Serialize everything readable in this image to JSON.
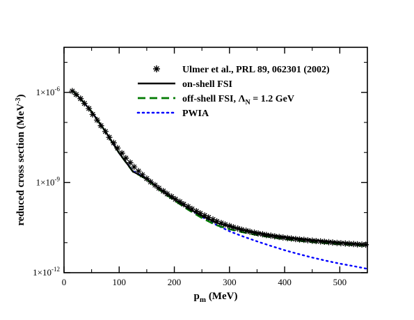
{
  "chart_data": {
    "type": "line",
    "xlabel": "p",
    "xlabel_sub": "m",
    "xlabel_unit": " (MeV)",
    "ylabel": "reduced cross section (MeV",
    "ylabel_sup": "-3",
    "ylabel_end": ")",
    "xlim": [
      0,
      550
    ],
    "ylim_log10": [
      -12,
      -4.5
    ],
    "yscale": "log",
    "grid": false,
    "legend_position": "top-right",
    "x_ticks": [
      {
        "value": 0,
        "label": "0"
      },
      {
        "value": 100,
        "label": "100"
      },
      {
        "value": 200,
        "label": "200"
      },
      {
        "value": 300,
        "label": "300"
      },
      {
        "value": 400,
        "label": "400"
      },
      {
        "value": 500,
        "label": "500"
      }
    ],
    "y_ticks": [
      {
        "exp": -6,
        "base": "1×10",
        "sup": "-6"
      },
      {
        "exp": -9,
        "base": "1×10",
        "sup": "-9"
      },
      {
        "exp": -12,
        "base": "1×10",
        "sup": "-12"
      }
    ],
    "series": [
      {
        "name": "Ulmer et al., PRL 89, 062301 (2002)",
        "kind": "points",
        "color": "#000000",
        "x": [
          15,
          22,
          30,
          37,
          45,
          52,
          60,
          67,
          75,
          82,
          90,
          97,
          105,
          112,
          120,
          127,
          135,
          142,
          150,
          157,
          165,
          172,
          180,
          187,
          195,
          202,
          210,
          217,
          225,
          232,
          240,
          247,
          255,
          262,
          270,
          277,
          285,
          292,
          300,
          307,
          315,
          322,
          330,
          337,
          345,
          352,
          360,
          367,
          375,
          382,
          390,
          397,
          405,
          412,
          420,
          427,
          435,
          442,
          450,
          457,
          465,
          472,
          480,
          487,
          495,
          502,
          510,
          517,
          525,
          532,
          540,
          547
        ],
        "y": [
          1.1e-06,
          8.5e-07,
          6.2e-07,
          4.3e-07,
          2.9e-07,
          1.85e-07,
          1.2e-07,
          7.8e-08,
          5e-08,
          3.2e-08,
          2.1e-08,
          1.4e-08,
          9.5e-09,
          6.5e-09,
          4.6e-09,
          3.3e-09,
          2.4e-09,
          1.8e-09,
          1.35e-09,
          1.05e-09,
          8.2e-10,
          6.5e-10,
          5.2e-10,
          4.2e-10,
          3.4e-10,
          2.8e-10,
          2.3e-10,
          1.9e-10,
          1.58e-10,
          1.32e-10,
          1.11e-10,
          9.4e-11,
          8e-11,
          6.9e-11,
          5.9e-11,
          5.1e-11,
          4.5e-11,
          4e-11,
          3.6e-11,
          3.25e-11,
          2.95e-11,
          2.7e-11,
          2.5e-11,
          2.32e-11,
          2.15e-11,
          2.02e-11,
          1.9e-11,
          1.79e-11,
          1.7e-11,
          1.62e-11,
          1.55e-11,
          1.48e-11,
          1.42e-11,
          1.37e-11,
          1.32e-11,
          1.28e-11,
          1.24e-11,
          1.2e-11,
          1.16e-11,
          1.13e-11,
          1.1e-11,
          1.07e-11,
          1.04e-11,
          1.01e-11,
          9.8e-12,
          9.6e-12,
          9.4e-12,
          9.2e-12,
          9e-12,
          8.8e-12,
          8.6e-12,
          8.5e-12
        ]
      },
      {
        "name": "on-shell FSI",
        "kind": "solid",
        "color": "#000000",
        "x": [
          15,
          30,
          50,
          75,
          100,
          125,
          150,
          175,
          200,
          225,
          250,
          275,
          300,
          325,
          350,
          375,
          400,
          425,
          450,
          475,
          500,
          525,
          550
        ],
        "y": [
          1.15e-06,
          6.1e-07,
          2.3e-07,
          5e-08,
          9.5e-09,
          2.3e-09,
          1.35e-09,
          5.8e-10,
          2.8e-10,
          1.4e-10,
          7.7e-11,
          4.7e-11,
          3.4e-11,
          2.65e-11,
          2.15e-11,
          1.8e-11,
          1.55e-11,
          1.38e-11,
          1.22e-11,
          1.1e-11,
          1e-11,
          9.2e-12,
          8.5e-12
        ]
      },
      {
        "name": "off-shell FSI, Λ = 1.2 GeV",
        "name_parts": [
          "off-shell FSI, Λ",
          "N",
          " = 1.2 GeV"
        ],
        "kind": "dashed",
        "color": "#007a00",
        "x": [
          15,
          30,
          50,
          75,
          100,
          125,
          150,
          175,
          200,
          225,
          250,
          275,
          300,
          325,
          350,
          375,
          400,
          425,
          450,
          475,
          500,
          525,
          550
        ],
        "y": [
          1.15e-06,
          6.1e-07,
          2.3e-07,
          5e-08,
          9.5e-09,
          2.3e-09,
          1.3e-09,
          5.4e-10,
          2.55e-10,
          1.25e-10,
          6.6e-11,
          3.9e-11,
          2.8e-11,
          2.2e-11,
          1.8e-11,
          1.52e-11,
          1.32e-11,
          1.17e-11,
          1.05e-11,
          9.6e-12,
          8.9e-12,
          8.3e-12,
          7.8e-12
        ]
      },
      {
        "name": "PWIA",
        "kind": "dotted",
        "color": "#0000ff",
        "x": [
          15,
          30,
          50,
          75,
          100,
          125,
          150,
          175,
          200,
          225,
          250,
          275,
          300,
          325,
          350,
          375,
          400,
          425,
          450,
          475,
          500,
          525,
          550
        ],
        "y": [
          1.15e-06,
          6.1e-07,
          2.3e-07,
          5e-08,
          9.5e-09,
          2.4e-09,
          1.4e-09,
          6e-10,
          2.9e-10,
          1.4e-10,
          7.2e-11,
          4e-11,
          2.4e-11,
          1.6e-11,
          1.1e-11,
          7.8e-12,
          5.6e-12,
          4.2e-12,
          3.2e-12,
          2.5e-12,
          2e-12,
          1.65e-12,
          1.35e-12
        ]
      }
    ]
  }
}
